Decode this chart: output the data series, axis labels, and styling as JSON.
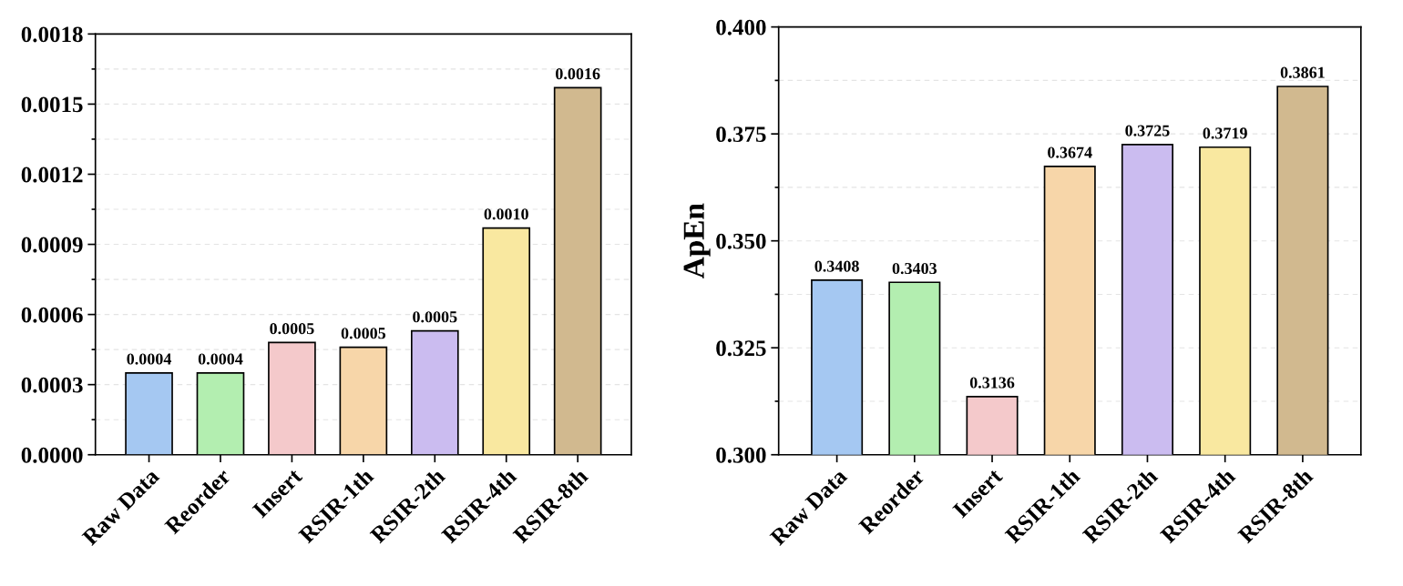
{
  "chart_data": [
    {
      "type": "bar",
      "categories": [
        "Raw Data",
        "Reorder",
        "Insert",
        "RSIR-1th",
        "RSIR-2th",
        "RSIR-4th",
        "RSIR-8th"
      ],
      "values": [
        0.00035,
        0.00035,
        0.00048,
        0.00046,
        0.00053,
        0.00097,
        0.00157
      ],
      "value_labels": [
        "0.0004",
        "0.0004",
        "0.0005",
        "0.0005",
        "0.0005",
        "0.0010",
        "0.0016"
      ],
      "colors": [
        "#a5c8f2",
        "#b3eeb0",
        "#f4c9cb",
        "#f7d6a9",
        "#cbbcf0",
        "#f9e8a0",
        "#d1b98f"
      ],
      "ylim": [
        0,
        0.0018
      ],
      "yticks": [
        {
          "value": 0,
          "label": "0.0000"
        },
        {
          "value": 0.00015,
          "label": null
        },
        {
          "value": 0.0003,
          "label": "0.0003"
        },
        {
          "value": 0.00045,
          "label": null
        },
        {
          "value": 0.0006,
          "label": "0.0006"
        },
        {
          "value": 0.00075,
          "label": null
        },
        {
          "value": 0.0009,
          "label": "0.0009"
        },
        {
          "value": 0.00105,
          "label": null
        },
        {
          "value": 0.0012,
          "label": "0.0012"
        },
        {
          "value": 0.00135,
          "label": null
        },
        {
          "value": 0.0015,
          "label": "0.0015"
        },
        {
          "value": 0.00165,
          "label": null
        },
        {
          "value": 0.0018,
          "label": "0.0018"
        }
      ],
      "grid": "y"
    },
    {
      "type": "bar",
      "categories": [
        "Raw Data",
        "Reorder",
        "Insert",
        "RSIR-1th",
        "RSIR-2th",
        "RSIR-4th",
        "RSIR-8th"
      ],
      "values": [
        0.3408,
        0.3403,
        0.3136,
        0.3674,
        0.3725,
        0.3719,
        0.3861
      ],
      "data_labels": true,
      "colors": [
        "#a5c8f2",
        "#b3eeb0",
        "#f4c9cb",
        "#f7d6a9",
        "#cbbcf0",
        "#f9e8a0",
        "#d1b98f"
      ],
      "ylabel": "ApEn",
      "ylim": [
        0.3,
        0.4
      ],
      "yticks": [
        {
          "value": 0.3,
          "label": "0.300"
        },
        {
          "value": 0.3125,
          "label": null
        },
        {
          "value": 0.325,
          "label": "0.325"
        },
        {
          "value": 0.3375,
          "label": null
        },
        {
          "value": 0.35,
          "label": "0.350"
        },
        {
          "value": 0.3625,
          "label": null
        },
        {
          "value": 0.375,
          "label": "0.375"
        },
        {
          "value": 0.3875,
          "label": null
        },
        {
          "value": 0.4,
          "label": "0.400"
        }
      ],
      "grid": "y"
    }
  ]
}
